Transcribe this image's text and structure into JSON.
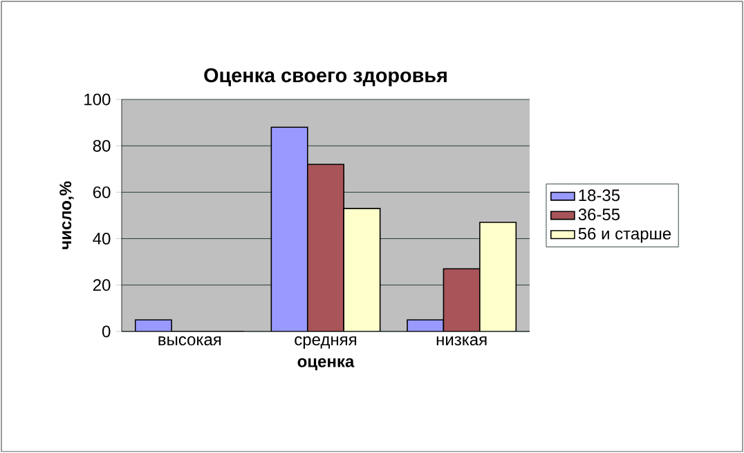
{
  "chart_data": {
    "type": "bar",
    "title": "Оценка своего здоровья",
    "xlabel": "оценка",
    "ylabel": "число,%",
    "categories": [
      "высокая",
      "средняя",
      "низкая"
    ],
    "series": [
      {
        "name": "18-35",
        "color": "#9999ff",
        "values": [
          5,
          88,
          5
        ]
      },
      {
        "name": "36-55",
        "color": "#a85458",
        "values": [
          0,
          72,
          27
        ]
      },
      {
        "name": "56 и старше",
        "color": "#ffffcc",
        "values": [
          0,
          53,
          47
        ]
      }
    ],
    "ylim": [
      0,
      100
    ],
    "yticks": [
      0,
      20,
      40,
      60,
      80,
      100
    ],
    "grid": "y",
    "legend": "right"
  }
}
